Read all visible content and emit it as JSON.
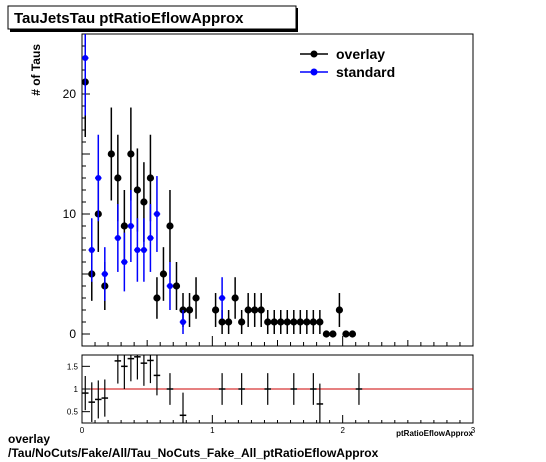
{
  "title": "TauJetsTau ptRatioEflowApprox",
  "footer": {
    "line1": "overlay",
    "line2": "/Tau/NoCuts/Fake/All/Tau_NoCuts_Fake_All_ptRatioEflowApprox"
  },
  "colors": {
    "overlay": "#000000",
    "standard": "#0000ff",
    "ratio_line": "#cc0000"
  },
  "chart_data": [
    {
      "type": "scatter",
      "title": "TauJetsTau ptRatioEflowApprox",
      "ylabel": "# of Taus",
      "xlabel": "ptRatioEflowApprox",
      "xlim": [
        0,
        3
      ],
      "ylim": [
        -1,
        25
      ],
      "yticks": [
        0,
        10,
        20
      ],
      "xticks": [
        0,
        1,
        2,
        3
      ],
      "legend": {
        "placement": "top-right",
        "entries": [
          "overlay",
          "standard"
        ]
      },
      "x": [
        0.025,
        0.075,
        0.125,
        0.175,
        0.225,
        0.275,
        0.325,
        0.375,
        0.425,
        0.475,
        0.525,
        0.575,
        0.625,
        0.675,
        0.725,
        0.775,
        0.825,
        0.875,
        0.925,
        0.975,
        1.025,
        1.075,
        1.125,
        1.175,
        1.225,
        1.275,
        1.325,
        1.375,
        1.425,
        1.475,
        1.525,
        1.575,
        1.625,
        1.675,
        1.725,
        1.775,
        1.825,
        1.875,
        1.925,
        1.975,
        2.025,
        2.075,
        2.125,
        2.175,
        2.225,
        2.275,
        2.325,
        2.375,
        2.425,
        2.475,
        2.525,
        2.575,
        2.625,
        2.675,
        2.725,
        2.775,
        2.825,
        2.875,
        2.925,
        2.975
      ],
      "series": [
        {
          "name": "overlay",
          "values": [
            21,
            5,
            10,
            4,
            15,
            13,
            9,
            15,
            12,
            11,
            13,
            3,
            5,
            9,
            4,
            2,
            2,
            3,
            2,
            1,
            1,
            3,
            1,
            2,
            2,
            2,
            1,
            1,
            1,
            1,
            1,
            1,
            1,
            1,
            1,
            0,
            0,
            2,
            0,
            0
          ],
          "values_x": [
            0.025,
            0.075,
            0.125,
            0.175,
            0.225,
            0.275,
            0.325,
            0.375,
            0.425,
            0.475,
            0.525,
            0.575,
            0.625,
            0.675,
            0.725,
            0.775,
            0.825,
            0.875,
            1.025,
            1.075,
            1.125,
            1.175,
            1.225,
            1.275,
            1.325,
            1.375,
            1.425,
            1.475,
            1.525,
            1.575,
            1.625,
            1.675,
            1.725,
            1.775,
            1.825,
            1.875,
            1.925,
            1.975,
            2.025,
            2.075
          ]
        },
        {
          "name": "standard",
          "values": [
            23,
            7,
            13,
            5,
            8,
            6,
            9,
            7,
            7,
            8,
            10,
            4,
            1,
            3
          ],
          "values_x": [
            0.025,
            0.075,
            0.125,
            0.175,
            0.275,
            0.325,
            0.375,
            0.425,
            0.475,
            0.525,
            0.575,
            0.675,
            0.775,
            1.075
          ]
        }
      ]
    },
    {
      "type": "scatter",
      "name": "ratio",
      "xlim": [
        0,
        3
      ],
      "ylim": [
        0.25,
        1.75
      ],
      "yticks": [
        0.5,
        1,
        1.5
      ],
      "xticks": [
        0,
        1,
        2,
        3
      ],
      "reference_line": 1.0,
      "points": [
        {
          "x": 0.025,
          "y": 0.91
        },
        {
          "x": 0.075,
          "y": 0.71
        },
        {
          "x": 0.125,
          "y": 0.77
        },
        {
          "x": 0.175,
          "y": 0.8
        },
        {
          "x": 0.275,
          "y": 1.62
        },
        {
          "x": 0.325,
          "y": 1.5
        },
        {
          "x": 0.375,
          "y": 1.67
        },
        {
          "x": 0.425,
          "y": 1.71
        },
        {
          "x": 0.475,
          "y": 1.57
        },
        {
          "x": 0.525,
          "y": 1.63
        },
        {
          "x": 0.575,
          "y": 1.3
        },
        {
          "x": 0.675,
          "y": 1.0
        },
        {
          "x": 0.775,
          "y": 0.42
        },
        {
          "x": 1.075,
          "y": 1.0
        },
        {
          "x": 1.225,
          "y": 1.0
        },
        {
          "x": 1.425,
          "y": 1.0
        },
        {
          "x": 1.625,
          "y": 1.0
        },
        {
          "x": 1.775,
          "y": 1.0
        },
        {
          "x": 1.825,
          "y": 0.67
        },
        {
          "x": 2.125,
          "y": 1.0
        }
      ]
    }
  ]
}
